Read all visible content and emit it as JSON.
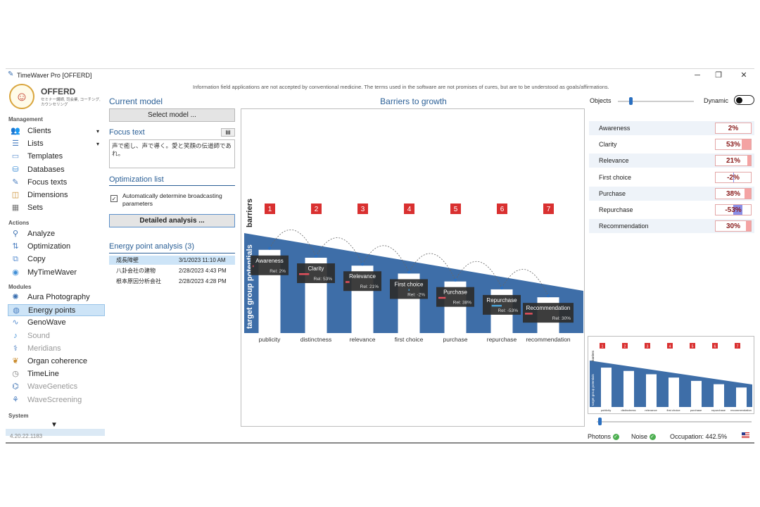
{
  "window": {
    "title": "TimeWaver Pro [OFFERD]",
    "minimize": "─",
    "maximize": "❐",
    "close": "✕"
  },
  "disclaimer": "Information field applications are not accepted by conventional medicine. The terms used in the software are not promises of cures, but are to be understood as goals/affirmations.",
  "profile": {
    "name": "OFFERD",
    "subtitle": "セミナー講師, 司会業, コーチング, カウンセリング"
  },
  "sidebar": {
    "management_title": "Management",
    "management": [
      {
        "label": "Clients",
        "icon": "people-icon",
        "caret": "▾"
      },
      {
        "label": "Lists",
        "icon": "list-icon",
        "caret": "▾"
      },
      {
        "label": "Templates",
        "icon": "template-icon"
      },
      {
        "label": "Databases",
        "icon": "database-icon"
      },
      {
        "label": "Focus texts",
        "icon": "focus-text-icon"
      },
      {
        "label": "Dimensions",
        "icon": "dimensions-icon"
      },
      {
        "label": "Sets",
        "icon": "sets-icon"
      }
    ],
    "actions_title": "Actions",
    "actions": [
      {
        "label": "Analyze",
        "icon": "analyze-icon"
      },
      {
        "label": "Optimization",
        "icon": "optimization-icon"
      },
      {
        "label": "Copy",
        "icon": "copy-icon"
      },
      {
        "label": "MyTimeWaver",
        "icon": "mytimewaver-icon"
      }
    ],
    "modules_title": "Modules",
    "modules": [
      {
        "label": "Aura Photography",
        "icon": "aura-icon"
      },
      {
        "label": "Energy points",
        "icon": "energy-points-icon"
      },
      {
        "label": "GenoWave",
        "icon": "genowave-icon"
      },
      {
        "label": "Sound",
        "icon": "sound-icon"
      },
      {
        "label": "Meridians",
        "icon": "meridians-icon"
      },
      {
        "label": "Organ coherence",
        "icon": "organ-icon"
      },
      {
        "label": "TimeLine",
        "icon": "timeline-icon"
      },
      {
        "label": "WaveGenetics",
        "icon": "wavegenetics-icon"
      },
      {
        "label": "WaveScreening",
        "icon": "wavescreening-icon"
      }
    ],
    "system_title": "System",
    "system_arrow": "▼",
    "version": "4.20.22.1183"
  },
  "middle": {
    "current_model_title": "Current model",
    "select_model_button": "Select model ...",
    "focus_text_title": "Focus text",
    "focus_text_value": "声で癒し、声で導く。愛と笑顔の伝道師であれ。",
    "focus_icon": "▤",
    "optimization_title": "Optimization list",
    "auto_broadcast_label": "Automatically determine broadcasting parameters",
    "auto_broadcast_check": "✓",
    "detailed_analysis_button": "Detailed analysis ...",
    "energy_point_title": "Energy point analysis (3)",
    "energy_points": [
      {
        "name": "成長障壁",
        "date": "3/1/2023 11:10 AM"
      },
      {
        "name": "八卦会社の建物",
        "date": "2/28/2023 4:43 PM"
      },
      {
        "name": "根本原因分析会社",
        "date": "2/28/2023 4:28 PM"
      }
    ]
  },
  "chart": {
    "title": "Barriers to growth",
    "barriers_label": "barriers",
    "potentials_label": "target group potentials",
    "numbers": [
      "1",
      "2",
      "3",
      "4",
      "5",
      "6",
      "7"
    ],
    "categories": [
      "publicity",
      "distinctness",
      "relevance",
      "first choice",
      "purchase",
      "repurchase",
      "recommendation"
    ],
    "cards": [
      {
        "title": "Awareness",
        "rel": "Rel: 2%",
        "value": 2
      },
      {
        "title": "Clarity",
        "rel": "Rel: 53%",
        "value": 53
      },
      {
        "title": "Relevance",
        "rel": "Rel: 21%",
        "value": 21
      },
      {
        "title": "First choice",
        "rel": "Rel: -2%",
        "value": -2
      },
      {
        "title": "Purchase",
        "rel": "Rel: 38%",
        "value": 38
      },
      {
        "title": "Repurchase",
        "rel": "Rel: -53%",
        "value": -53
      },
      {
        "title": "Recommendation",
        "rel": "Rel: 30%",
        "value": 30
      }
    ],
    "colors": {
      "blue": "#3e6ea8",
      "red": "#d93030",
      "card": "#2d2d2d",
      "pos": "#e2505c",
      "neg": "#4aa3d8"
    }
  },
  "right": {
    "objects_label": "Objects",
    "objects_level": 0.15,
    "dynamic_label": "Dynamic",
    "dynamic_on": false,
    "kpis": [
      {
        "name": "Awareness",
        "value": "2%",
        "num": 2
      },
      {
        "name": "Clarity",
        "value": "53%",
        "num": 53
      },
      {
        "name": "Relevance",
        "value": "21%",
        "num": 21
      },
      {
        "name": "First choice",
        "value": "-2%",
        "num": -2
      },
      {
        "name": "Purchase",
        "value": "38%",
        "num": 38
      },
      {
        "name": "Repurchase",
        "value": "-53%",
        "num": -53
      },
      {
        "name": "Recommendation",
        "value": "30%",
        "num": 30
      }
    ],
    "thumbnail_slider_level": 0.1
  },
  "status": {
    "photons": "Photons",
    "noise": "Noise",
    "occupation": "Occupation: 442.5%",
    "ok_glyph": "✓"
  }
}
